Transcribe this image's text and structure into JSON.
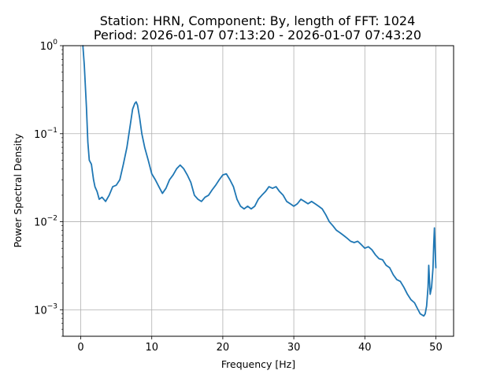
{
  "chart_data": {
    "type": "line",
    "title": "Station: HRN, Component: By, length of FFT: 1024",
    "subtitle": "Period: 2026-01-07 07:13:20 - 2026-01-07 07:43:20",
    "xlabel": "Frequency [Hz]",
    "ylabel": "Power Spectral Density",
    "xlim": [
      -2.5,
      52.5
    ],
    "ylim": [
      0.0005,
      1
    ],
    "yscale": "log",
    "grid": true,
    "line_color": "#1f77b4",
    "x_ticks": [
      {
        "value": 0,
        "label": "0"
      },
      {
        "value": 10,
        "label": "10"
      },
      {
        "value": 20,
        "label": "20"
      },
      {
        "value": 30,
        "label": "30"
      },
      {
        "value": 40,
        "label": "40"
      },
      {
        "value": 50,
        "label": "50"
      }
    ],
    "y_ticks": [
      {
        "value": 0.001,
        "base": "10",
        "exp": "−3"
      },
      {
        "value": 0.01,
        "base": "10",
        "exp": "−2"
      },
      {
        "value": 0.1,
        "base": "10",
        "exp": "−1"
      },
      {
        "value": 1,
        "base": "10",
        "exp": "0"
      }
    ],
    "series": [
      {
        "x": [
          0.3,
          0.5,
          0.8,
          1.0,
          1.2,
          1.5,
          1.8,
          2.0,
          2.3,
          2.6,
          3.0,
          3.5,
          4.0,
          4.5,
          5.0,
          5.5,
          6.0,
          6.5,
          7.0,
          7.3,
          7.6,
          7.8,
          8.0,
          8.3,
          8.6,
          9.0,
          9.5,
          10.0,
          10.5,
          11.0,
          11.5,
          12.0,
          12.5,
          13.0,
          13.5,
          14.0,
          14.5,
          15.0,
          15.5,
          16.0,
          16.5,
          17.0,
          17.5,
          18.0,
          18.5,
          19.0,
          19.5,
          20.0,
          20.5,
          21.0,
          21.5,
          22.0,
          22.5,
          23.0,
          23.5,
          24.0,
          24.5,
          25.0,
          25.5,
          26.0,
          26.5,
          27.0,
          27.5,
          28.0,
          28.5,
          29.0,
          29.5,
          30.0,
          30.5,
          31.0,
          31.5,
          32.0,
          32.5,
          33.0,
          33.5,
          34.0,
          34.5,
          35.0,
          35.5,
          36.0,
          36.5,
          37.0,
          37.5,
          38.0,
          38.5,
          39.0,
          39.5,
          40.0,
          40.5,
          41.0,
          41.5,
          42.0,
          42.5,
          43.0,
          43.5,
          44.0,
          44.5,
          45.0,
          45.5,
          46.0,
          46.5,
          47.0,
          47.5,
          47.8,
          48.0,
          48.3,
          48.5,
          48.7,
          48.9,
          49.0,
          49.2,
          49.4,
          49.6,
          49.7,
          49.8,
          49.9,
          50.0
        ],
        "y": [
          1.0,
          0.6,
          0.2,
          0.08,
          0.05,
          0.045,
          0.03,
          0.025,
          0.022,
          0.018,
          0.019,
          0.017,
          0.02,
          0.025,
          0.026,
          0.03,
          0.045,
          0.07,
          0.13,
          0.19,
          0.22,
          0.23,
          0.21,
          0.15,
          0.1,
          0.07,
          0.05,
          0.035,
          0.03,
          0.025,
          0.021,
          0.024,
          0.03,
          0.034,
          0.04,
          0.044,
          0.04,
          0.034,
          0.028,
          0.02,
          0.018,
          0.017,
          0.019,
          0.02,
          0.023,
          0.026,
          0.03,
          0.034,
          0.035,
          0.03,
          0.025,
          0.018,
          0.015,
          0.014,
          0.015,
          0.014,
          0.015,
          0.018,
          0.02,
          0.022,
          0.025,
          0.024,
          0.025,
          0.022,
          0.02,
          0.017,
          0.016,
          0.015,
          0.016,
          0.018,
          0.017,
          0.016,
          0.017,
          0.016,
          0.015,
          0.014,
          0.012,
          0.01,
          0.009,
          0.008,
          0.0075,
          0.007,
          0.0065,
          0.006,
          0.0058,
          0.006,
          0.0055,
          0.005,
          0.0052,
          0.0048,
          0.0042,
          0.0038,
          0.0037,
          0.0032,
          0.003,
          0.0025,
          0.0022,
          0.0021,
          0.0018,
          0.0015,
          0.0013,
          0.0012,
          0.001,
          0.0009,
          0.00088,
          0.00085,
          0.0009,
          0.0011,
          0.0018,
          0.0032,
          0.0015,
          0.0018,
          0.003,
          0.0055,
          0.0085,
          0.005,
          0.003
        ]
      }
    ]
  }
}
